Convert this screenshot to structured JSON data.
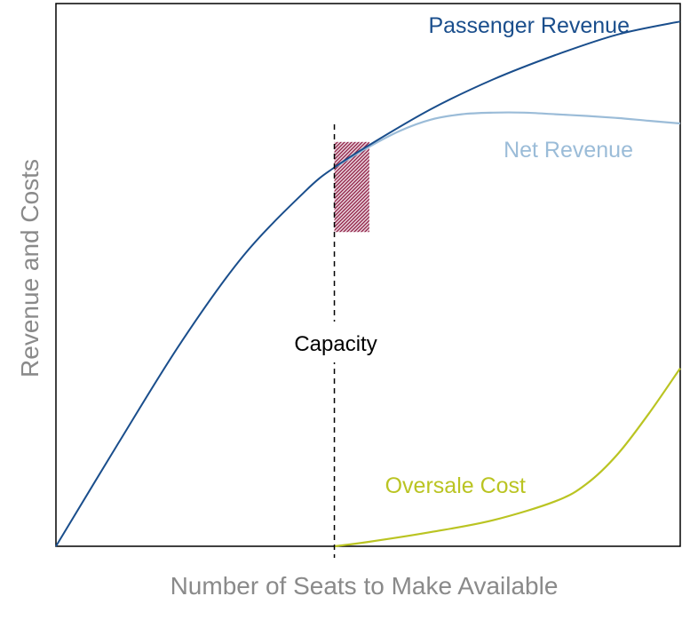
{
  "chart_data": {
    "type": "line",
    "xlabel": "Number of Seats to Make Available",
    "ylabel": "Revenue and Costs",
    "xlim": [
      0,
      100
    ],
    "ylim": [
      0,
      100
    ],
    "grid": false,
    "legend": "inline labels",
    "annotations": [
      {
        "label": "Capacity",
        "type": "vertical-line",
        "x": 44.6
      }
    ],
    "highlight_region": {
      "x": [
        44.6,
        50.2
      ],
      "y": [
        57.9,
        74.5
      ]
    },
    "series": [
      {
        "name": "Passenger Revenue",
        "color": "#1a4e8c",
        "x": [
          0,
          10,
          20,
          30,
          40,
          44.6,
          50,
          60,
          70,
          80,
          90,
          100
        ],
        "y": [
          0,
          19,
          37.5,
          53.5,
          65.5,
          69.8,
          73.8,
          80.5,
          86,
          90.5,
          94.3,
          96.7
        ]
      },
      {
        "name": "Net Revenue",
        "color": "#9bbcd8",
        "x": [
          44.6,
          50,
          55,
          60,
          65,
          70,
          75,
          80,
          85,
          90,
          95,
          100
        ],
        "y": [
          69.8,
          73.5,
          76.5,
          78.6,
          79.6,
          79.9,
          79.9,
          79.6,
          79.3,
          78.9,
          78.4,
          77.9
        ]
      },
      {
        "name": "Oversale Cost",
        "color": "#bac422",
        "x": [
          44.6,
          50,
          60,
          70,
          80,
          85,
          90,
          95,
          100
        ],
        "y": [
          0,
          0.8,
          2.6,
          4.8,
          8.3,
          11.5,
          17,
          24.5,
          32.8
        ]
      }
    ]
  }
}
